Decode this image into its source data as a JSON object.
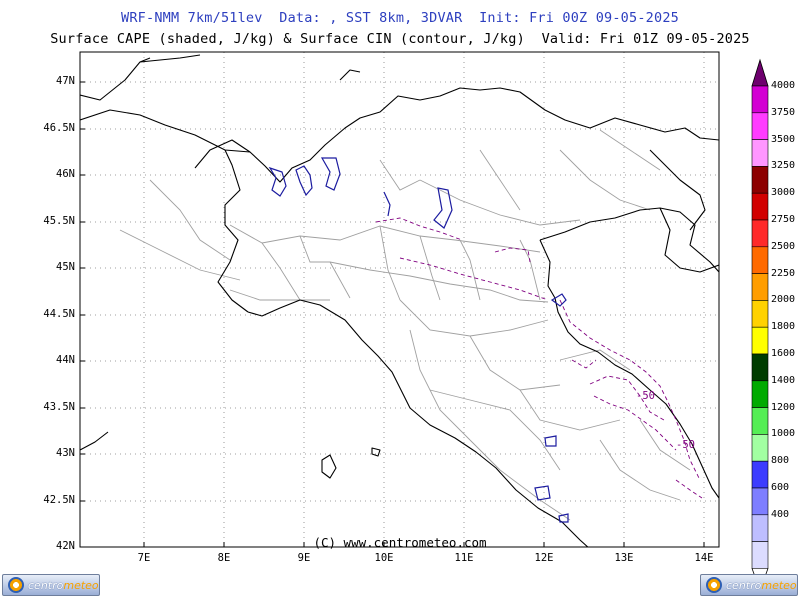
{
  "title_line1": "WRF-NMM 7km/51lev  Data: , SST 8km, 3DVAR  Init: Fri 00Z 09-05-2025",
  "title_line2": "Surface CAPE (shaded, J/kg) & Surface CIN (contour, J/kg)  Valid: Fri 01Z 09-05-2025",
  "latitude_labels": [
    "47N",
    "46.5N",
    "46N",
    "45.5N",
    "45N",
    "44.5N",
    "44N",
    "43.5N",
    "43N",
    "42.5N",
    "42N"
  ],
  "longitude_labels": [
    "7E",
    "8E",
    "9E",
    "10E",
    "11E",
    "12E",
    "13E",
    "14E"
  ],
  "colorbar_labels": [
    "4000",
    "3750",
    "3500",
    "3250",
    "3000",
    "2750",
    "2500",
    "2250",
    "2000",
    "1800",
    "1600",
    "1400",
    "1200",
    "1000",
    "800",
    "600",
    "400"
  ],
  "colorbar_colors": [
    "#d300d3",
    "#ff3cff",
    "#ff96ff",
    "#8c0000",
    "#d10000",
    "#ff2a2a",
    "#ff6a00",
    "#ff9d00",
    "#ffd200",
    "#ffff00",
    "#003c00",
    "#00aa00",
    "#55ee55",
    "#a2ffa2",
    "#3c3cff",
    "#7e7eff",
    "#bebeff",
    "#dcdcff"
  ],
  "colorbar_top_color": "#6e006e",
  "cin_contour_labels": [
    "-50",
    "-50"
  ],
  "copyright": "(C) www.centrometeo.com",
  "logo_left": {
    "part1": "centro",
    "part2": "meteo"
  },
  "logo_right": {
    "part1": "centro",
    "part2": "meteo"
  },
  "colors": {
    "title1": "#2d3fbf",
    "coast": "#000000",
    "borders": "#a0a0a0",
    "lakes": "#1c1ca0",
    "cin": "#800080",
    "grid": "#808080"
  }
}
